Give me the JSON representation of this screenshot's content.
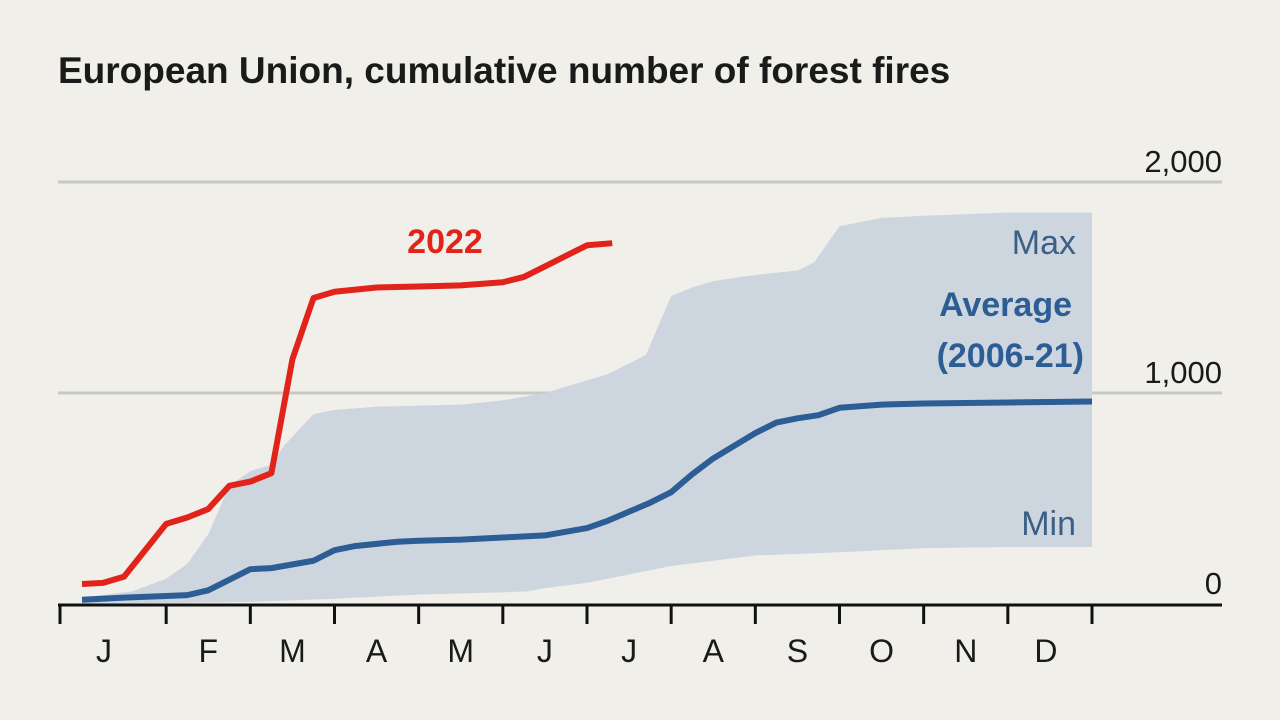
{
  "chart_data": {
    "type": "line",
    "title": "European Union, cumulative number of forest fires",
    "xlabel": "",
    "ylabel": "",
    "ylim": [
      0,
      2000
    ],
    "yticks": [
      "0",
      "1,000",
      "2,000"
    ],
    "months": [
      "J",
      "F",
      "M",
      "A",
      "M",
      "J",
      "J",
      "A",
      "S",
      "O",
      "N",
      "D"
    ],
    "grid": "horizontal",
    "x_unit": "month (0 = start of January, 12 = end of December)",
    "band": {
      "upper_name": "Max",
      "lower_name": "Min",
      "color": "#cdd6de",
      "upper": [
        [
          0,
          30
        ],
        [
          0.6,
          60
        ],
        [
          1.0,
          120
        ],
        [
          1.25,
          190
        ],
        [
          1.5,
          330
        ],
        [
          1.75,
          560
        ],
        [
          2.0,
          630
        ],
        [
          2.25,
          660
        ],
        [
          2.4,
          750
        ],
        [
          2.75,
          900
        ],
        [
          3.0,
          920
        ],
        [
          3.5,
          935
        ],
        [
          4.0,
          940
        ],
        [
          4.5,
          945
        ],
        [
          5.0,
          965
        ],
        [
          5.5,
          1000
        ],
        [
          6.0,
          1060
        ],
        [
          6.25,
          1090
        ],
        [
          6.7,
          1180
        ],
        [
          7.0,
          1460
        ],
        [
          7.25,
          1500
        ],
        [
          7.5,
          1530
        ],
        [
          8.0,
          1560
        ],
        [
          8.5,
          1580
        ],
        [
          8.7,
          1620
        ],
        [
          9.0,
          1790
        ],
        [
          9.5,
          1830
        ],
        [
          10.0,
          1840
        ],
        [
          11.0,
          1855
        ],
        [
          12.0,
          1855
        ]
      ],
      "lower": [
        [
          12.0,
          270
        ],
        [
          11.0,
          270
        ],
        [
          10.0,
          265
        ],
        [
          9.0,
          245
        ],
        [
          8.0,
          230
        ],
        [
          7.5,
          205
        ],
        [
          7.0,
          180
        ],
        [
          6.5,
          140
        ],
        [
          6.0,
          100
        ],
        [
          5.5,
          75
        ],
        [
          5.3,
          60
        ],
        [
          5.0,
          55
        ],
        [
          4.0,
          45
        ],
        [
          3.0,
          25
        ],
        [
          2.0,
          10
        ],
        [
          1.0,
          5
        ],
        [
          0,
          0
        ]
      ]
    },
    "series": [
      {
        "name": "Average (2006-21)",
        "color": "#2c5d95",
        "points": [
          [
            0,
            20
          ],
          [
            0.5,
            30
          ],
          [
            1.0,
            38
          ],
          [
            1.25,
            42
          ],
          [
            1.5,
            65
          ],
          [
            2.0,
            165
          ],
          [
            2.25,
            170
          ],
          [
            2.75,
            205
          ],
          [
            3.0,
            255
          ],
          [
            3.25,
            275
          ],
          [
            3.75,
            295
          ],
          [
            4.0,
            300
          ],
          [
            4.5,
            305
          ],
          [
            5.0,
            315
          ],
          [
            5.5,
            325
          ],
          [
            6.0,
            360
          ],
          [
            6.25,
            395
          ],
          [
            6.75,
            480
          ],
          [
            7.0,
            530
          ],
          [
            7.25,
            615
          ],
          [
            7.5,
            690
          ],
          [
            8.0,
            810
          ],
          [
            8.25,
            860
          ],
          [
            8.5,
            880
          ],
          [
            8.75,
            895
          ],
          [
            9.0,
            930
          ],
          [
            9.5,
            945
          ],
          [
            10.0,
            950
          ],
          [
            11.0,
            955
          ],
          [
            12.0,
            960
          ]
        ]
      },
      {
        "name": "2022",
        "color": "#e2231a",
        "points": [
          [
            0,
            95
          ],
          [
            0.25,
            100
          ],
          [
            0.5,
            130
          ],
          [
            1.0,
            380
          ],
          [
            1.25,
            410
          ],
          [
            1.5,
            450
          ],
          [
            1.75,
            560
          ],
          [
            2.0,
            580
          ],
          [
            2.25,
            620
          ],
          [
            2.5,
            1160
          ],
          [
            2.75,
            1450
          ],
          [
            3.0,
            1480
          ],
          [
            3.5,
            1500
          ],
          [
            4.0,
            1505
          ],
          [
            4.5,
            1510
          ],
          [
            5.0,
            1525
          ],
          [
            5.25,
            1550
          ],
          [
            5.5,
            1600
          ],
          [
            5.75,
            1650
          ],
          [
            6.0,
            1700
          ],
          [
            6.3,
            1710
          ]
        ]
      }
    ],
    "annotations": {
      "series_2022": "2022",
      "max": "Max",
      "average_line1": "Average",
      "average_line2": "(2006-21)",
      "min": "Min"
    }
  }
}
